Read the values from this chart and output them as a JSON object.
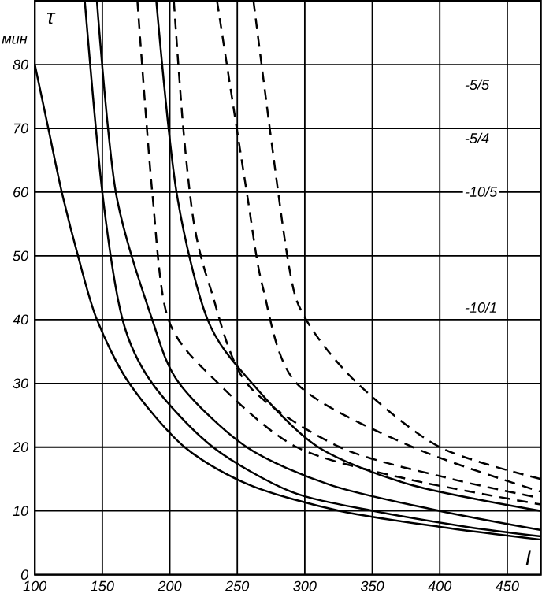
{
  "chart_data": {
    "type": "line",
    "ylabel": "τ",
    "xlabel": "I",
    "annotations": [
      "мин",
      "-5/5",
      "-5/4",
      "-10/5",
      "-10/1"
    ],
    "xlim": [
      100,
      475
    ],
    "ylim": [
      0,
      90
    ],
    "xticks": [
      100,
      150,
      200,
      250,
      300,
      350,
      400,
      450
    ],
    "yticks": [
      0,
      10,
      20,
      30,
      40,
      50,
      60,
      70,
      80
    ],
    "grid": true,
    "marker": "none",
    "series": [
      {
        "color": "#000000",
        "line_style": "solid",
        "x": [
          100,
          110,
          120,
          132,
          146,
          170,
          211,
          260,
          326,
          400,
          475
        ],
        "values": [
          80,
          70,
          60,
          50,
          40,
          30,
          20,
          14,
          10,
          7.5,
          5.5
        ]
      },
      {
        "color": "#000000",
        "line_style": "solid",
        "x": [
          137,
          150,
          165,
          187,
          232,
          290,
          351,
          420,
          475
        ],
        "values": [
          90,
          60,
          40,
          30,
          20,
          13,
          10,
          7.5,
          6
        ]
      },
      {
        "color": "#000000",
        "line_style": "solid",
        "x": [
          146,
          160,
          187,
          207,
          257,
          320,
          400,
          475
        ],
        "values": [
          90,
          60,
          40,
          30,
          20,
          14,
          10,
          7
        ]
      },
      {
        "color": "#000000",
        "line_style": "solid",
        "x": [
          190,
          205,
          228,
          261,
          310,
          380,
          475
        ],
        "values": [
          90,
          60,
          40,
          30,
          20,
          14,
          10
        ]
      },
      {
        "color": "#000000",
        "line_style": "dashed",
        "x": [
          176,
          187,
          199,
          236,
          294,
          376,
          475
        ],
        "values": [
          90,
          60,
          40,
          30,
          20,
          15,
          11
        ]
      },
      {
        "color": "#000000",
        "line_style": "dashed",
        "x": [
          203,
          210,
          218,
          230,
          257,
          326,
          409,
          475
        ],
        "values": [
          90,
          70,
          55,
          45,
          30,
          20,
          15,
          12
        ]
      },
      {
        "color": "#000000",
        "line_style": "dashed",
        "x": [
          235,
          257,
          269,
          294,
          380,
          475
        ],
        "values": [
          90,
          60,
          45,
          30,
          20,
          13
        ]
      },
      {
        "color": "#000000",
        "line_style": "dashed",
        "x": [
          262,
          287,
          301,
          339,
          400,
          475
        ],
        "values": [
          90,
          50,
          40,
          30,
          20,
          15
        ]
      }
    ]
  }
}
